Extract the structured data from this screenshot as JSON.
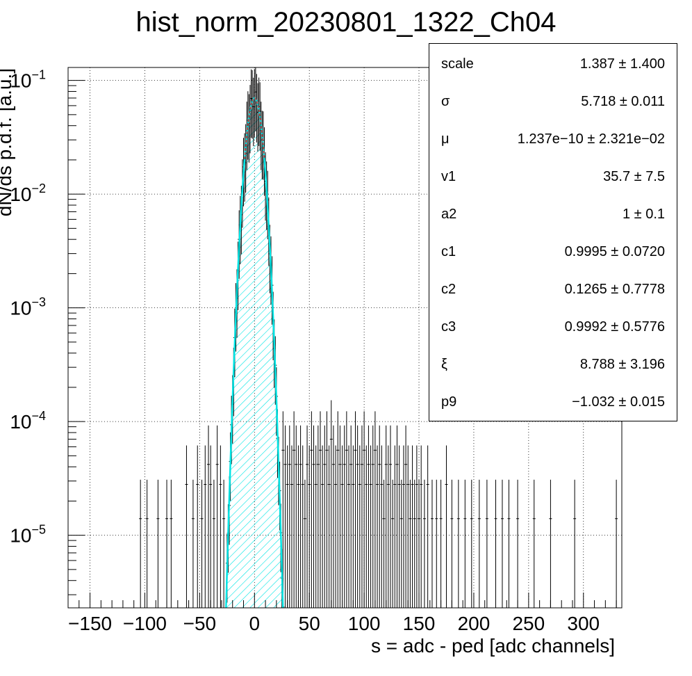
{
  "chart_data": {
    "type": "histogram",
    "title": "hist_norm_20230801_1322_Ch04",
    "xlabel": "s = adc - ped [adc channels]",
    "ylabel": "dN/ds p.d.f. [a.u.]",
    "xlim": [
      -170,
      335
    ],
    "ylim": [
      2.3e-06,
      0.13
    ],
    "yscale": "log",
    "grid": true,
    "x_ticks": [
      -150,
      -100,
      -50,
      0,
      50,
      100,
      150,
      200,
      250,
      300
    ],
    "x_tick_labels": [
      "−150",
      "−100",
      "−50",
      "0",
      "50",
      "100",
      "150",
      "200",
      "250",
      "300"
    ],
    "y_ticks": [
      {
        "value": 1e-05,
        "base": "10",
        "exp": "−5"
      },
      {
        "value": 0.0001,
        "base": "10",
        "exp": "−4"
      },
      {
        "value": 0.001,
        "base": "10",
        "exp": "−3"
      },
      {
        "value": 0.01,
        "base": "10",
        "exp": "−2"
      },
      {
        "value": 0.1,
        "base": "10",
        "exp": "−1"
      }
    ],
    "fit": {
      "mu": 0.0,
      "sigma": 5.718,
      "peak": 0.07
    },
    "fit_color": "#00e5e5",
    "histogram_color": "#000000",
    "peak_color": "#d42020",
    "histogram": {
      "x": [
        -104,
        -98,
        -88,
        -80,
        -76,
        -62,
        -56,
        -52,
        -48,
        -45,
        -42,
        -40,
        -37,
        -34,
        -31,
        -28,
        26,
        28,
        30,
        32,
        34,
        36,
        38,
        40,
        42,
        44,
        46,
        48,
        50,
        52,
        54,
        56,
        58,
        60,
        62,
        64,
        66,
        68,
        70,
        72,
        74,
        76,
        78,
        80,
        82,
        84,
        86,
        88,
        90,
        92,
        94,
        96,
        98,
        100,
        102,
        104,
        106,
        108,
        110,
        112,
        114,
        116,
        118,
        120,
        122,
        124,
        126,
        128,
        130,
        132,
        134,
        136,
        138,
        140,
        142,
        144,
        146,
        148,
        150,
        152,
        155,
        158,
        162,
        166,
        170,
        175,
        180,
        186,
        192,
        198,
        205,
        212,
        220,
        226,
        232,
        240,
        255,
        270,
        292,
        330
      ],
      "y": [
        1.4e-05,
        1.4e-05,
        1.4e-05,
        1.4e-05,
        1.4e-05,
        2.8e-05,
        1.4e-05,
        2.8e-05,
        1.4e-05,
        2.8e-05,
        4.2e-05,
        2.8e-05,
        1.4e-05,
        4.2e-05,
        2.8e-05,
        1.4e-05,
        5.6e-05,
        4.2e-05,
        2.8e-05,
        4.2e-05,
        2.8e-05,
        5.6e-05,
        4.2e-05,
        2.8e-05,
        4.2e-05,
        2.8e-05,
        1.4e-05,
        4.2e-05,
        2.8e-05,
        5.6e-05,
        4.2e-05,
        2.8e-05,
        4.2e-05,
        5.6e-05,
        2.8e-05,
        4.2e-05,
        5.6e-05,
        2.8e-05,
        7e-05,
        4.2e-05,
        2.8e-05,
        5.6e-05,
        4.2e-05,
        2.8e-05,
        4.2e-05,
        5.6e-05,
        2.8e-05,
        4.2e-05,
        2.8e-05,
        5.6e-05,
        4.2e-05,
        2.8e-05,
        4.2e-05,
        5.6e-05,
        2.8e-05,
        4.2e-05,
        2.8e-05,
        4.2e-05,
        5.6e-05,
        2.8e-05,
        4.2e-05,
        2.8e-05,
        1.4e-05,
        4.2e-05,
        2.8e-05,
        4.2e-05,
        1.4e-05,
        2.8e-05,
        4.2e-05,
        2.8e-05,
        1.4e-05,
        2.8e-05,
        4.2e-05,
        2.8e-05,
        1.4e-05,
        2.8e-05,
        1.4e-05,
        2.8e-05,
        1.4e-05,
        2.8e-05,
        1.4e-05,
        2.8e-05,
        1.4e-05,
        1.4e-05,
        1.4e-05,
        2.8e-05,
        1.4e-05,
        1.4e-05,
        1.4e-05,
        1.4e-05,
        1.4e-05,
        1.4e-05,
        1.4e-05,
        1.4e-05,
        1.4e-05,
        1.4e-05,
        1.4e-05,
        1.4e-05,
        1.4e-05,
        1.4e-05
      ]
    }
  },
  "stats": [
    {
      "name": "scale",
      "value": "1.387 ± 1.400"
    },
    {
      "name": "σ",
      "value": "5.718 ± 0.011"
    },
    {
      "name": "μ",
      "value": "1.237e−10 ± 2.321e−02"
    },
    {
      "name": "v1",
      "value": "35.7 ± 7.5"
    },
    {
      "name": "a2",
      "value": "1 ± 0.1"
    },
    {
      "name": "c1",
      "value": "0.9995 ± 0.0720"
    },
    {
      "name": "c2",
      "value": "0.1265 ± 0.7778"
    },
    {
      "name": "c3",
      "value": "0.9992 ± 0.5776"
    },
    {
      "name": "ξ",
      "value": "8.788 ± 3.196"
    },
    {
      "name": "p9",
      "value": "−1.032 ± 0.015"
    }
  ]
}
